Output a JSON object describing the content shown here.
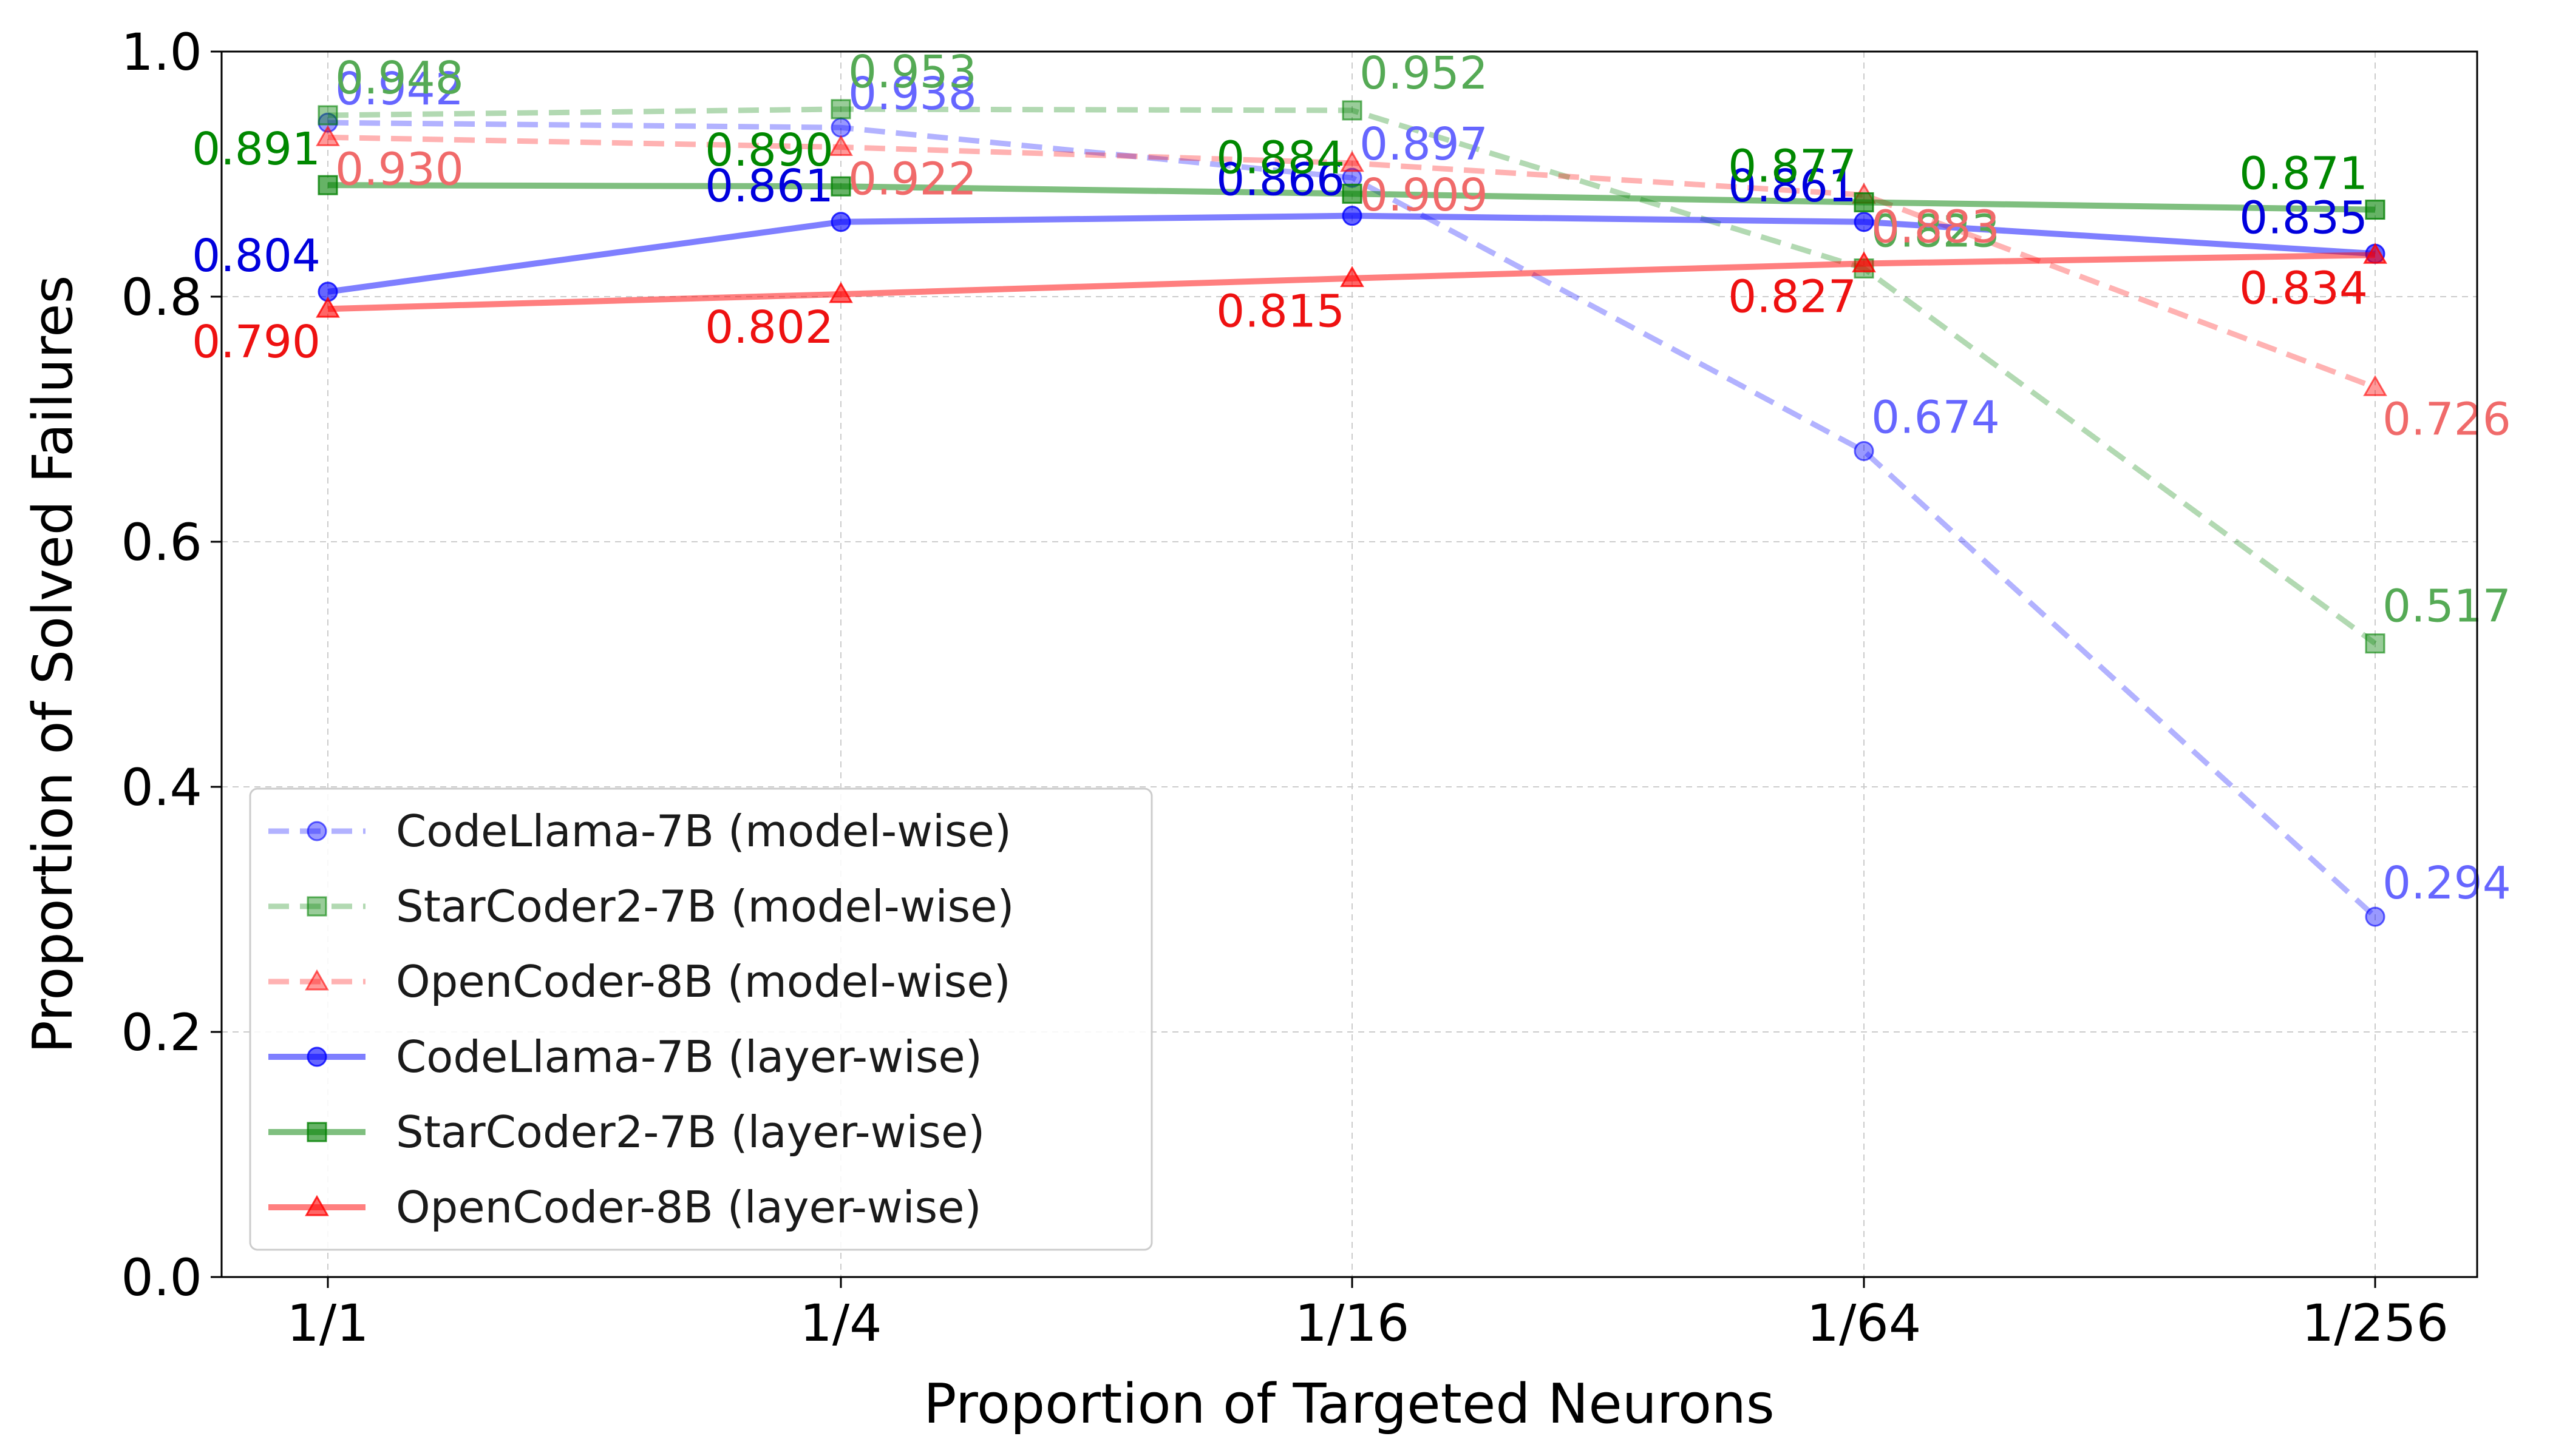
{
  "chart_data": {
    "type": "line",
    "title": "",
    "xlabel": "Proportion of Targeted Neurons",
    "ylabel": "Proportion of Solved Failures",
    "categories": [
      "1/1",
      "1/4",
      "1/16",
      "1/64",
      "1/256"
    ],
    "ylim": [
      0.0,
      1.0
    ],
    "yticks": [
      "0.0",
      "0.2",
      "0.4",
      "0.6",
      "0.8",
      "1.0"
    ],
    "grid": true,
    "legend_position": "lower-left",
    "series": [
      {
        "name": "CodeLlama-7B (model-wise)",
        "color": "#0000ff",
        "style": "dashed",
        "marker": "circle",
        "opacity": 0.3,
        "values": [
          0.942,
          0.938,
          0.897,
          0.674,
          0.294
        ],
        "labels": [
          "0.942",
          "0.938",
          "0.897",
          "0.674",
          "0.294"
        ]
      },
      {
        "name": "StarCoder2-7B (model-wise)",
        "color": "#008000",
        "style": "dashed",
        "marker": "square",
        "opacity": 0.3,
        "values": [
          0.948,
          0.953,
          0.952,
          0.823,
          0.517
        ],
        "labels": [
          "0.948",
          "0.953",
          "0.952",
          "0.823",
          "0.517"
        ]
      },
      {
        "name": "OpenCoder-8B (model-wise)",
        "color": "#ff0000",
        "style": "dashed",
        "marker": "triangle",
        "opacity": 0.3,
        "values": [
          0.93,
          0.922,
          0.909,
          0.883,
          0.726
        ],
        "labels": [
          "0.930",
          "0.922",
          "0.909",
          "0.883",
          "0.726"
        ]
      },
      {
        "name": "CodeLlama-7B (layer-wise)",
        "color": "#0000ff",
        "style": "solid",
        "marker": "circle",
        "opacity": 0.5,
        "values": [
          0.804,
          0.861,
          0.866,
          0.861,
          0.835
        ],
        "labels": [
          "0.804",
          "0.861",
          "0.866",
          "0.861",
          "0.835"
        ]
      },
      {
        "name": "StarCoder2-7B (layer-wise)",
        "color": "#008000",
        "style": "solid",
        "marker": "square",
        "opacity": 0.5,
        "values": [
          0.891,
          0.89,
          0.884,
          0.877,
          0.871
        ],
        "labels": [
          "0.891",
          "0.890",
          "0.884",
          "0.877",
          "0.871"
        ]
      },
      {
        "name": "OpenCoder-8B (layer-wise)",
        "color": "#ff0000",
        "style": "solid",
        "marker": "triangle",
        "opacity": 0.5,
        "values": [
          0.79,
          0.802,
          0.815,
          0.827,
          0.834
        ],
        "labels": [
          "0.790",
          "0.802",
          "0.815",
          "0.827",
          "0.834"
        ]
      }
    ]
  }
}
